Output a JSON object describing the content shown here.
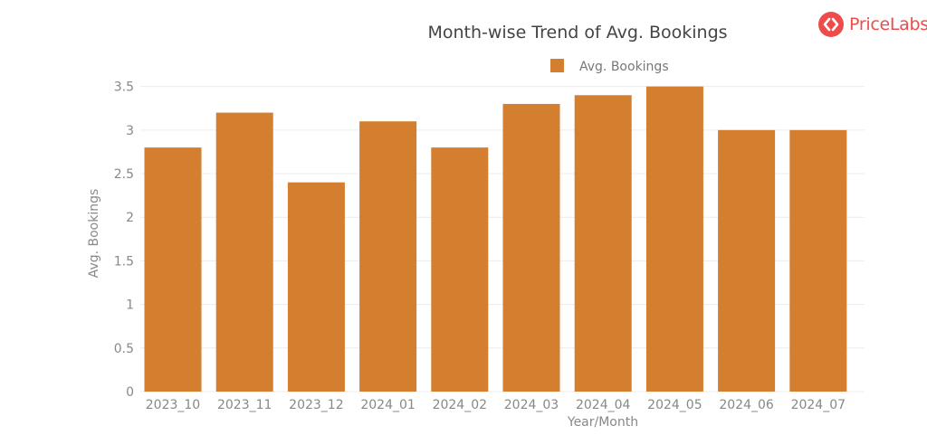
{
  "brand": {
    "name": "PriceLabs",
    "color": "#ee4b4b"
  },
  "chart_data": {
    "type": "bar",
    "title": "Month-wise Trend of Avg. Bookings",
    "xlabel": "Year/Month",
    "ylabel": "Avg. Bookings",
    "ylim": [
      0,
      3.6
    ],
    "yticks": [
      0,
      0.5,
      1,
      1.5,
      2,
      2.5,
      3,
      3.5
    ],
    "ytick_labels": [
      "0",
      "0.5",
      "1",
      "1.5",
      "2",
      "2.5",
      "3",
      "3.5"
    ],
    "grid": true,
    "legend": "top-center",
    "categories": [
      "2023_10",
      "2023_11",
      "2023_12",
      "2024_01",
      "2024_02",
      "2024_03",
      "2024_04",
      "2024_05",
      "2024_06",
      "2024_07"
    ],
    "series": [
      {
        "name": "Avg. Bookings",
        "color": "#d47e30",
        "values": [
          2.8,
          3.2,
          2.4,
          3.1,
          2.8,
          3.3,
          3.4,
          3.5,
          3.0,
          3.0
        ]
      }
    ]
  }
}
